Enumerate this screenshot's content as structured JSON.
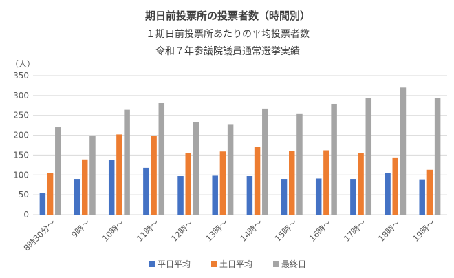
{
  "chart_data": {
    "type": "bar",
    "title": "期日前投票所の投票者数（時間別）",
    "subtitle": "１期日前投票所あたりの平均投票者数",
    "subtitle2": "令和７年参議院議員通常選挙実績",
    "ylabel": "（人）",
    "xlabel": "",
    "ylim": [
      0,
      350
    ],
    "yticks": [
      0,
      50,
      100,
      150,
      200,
      250,
      300,
      350
    ],
    "grid": true,
    "legend_position": "bottom",
    "categories": [
      "8時30分～",
      "9時～",
      "10時～",
      "11時～",
      "12時～",
      "13時～",
      "14時～",
      "15時～",
      "16時～",
      "17時～",
      "18時～",
      "19時～"
    ],
    "series": [
      {
        "name": "平日平均",
        "color": "#4472C4",
        "values": [
          55,
          90,
          137,
          118,
          97,
          98,
          97,
          90,
          91,
          90,
          104,
          89
        ]
      },
      {
        "name": "土日平均",
        "color": "#ED7D31",
        "values": [
          104,
          139,
          202,
          199,
          155,
          159,
          171,
          160,
          162,
          155,
          144,
          113
        ]
      },
      {
        "name": "最終日",
        "color": "#A5A5A5",
        "values": [
          220,
          199,
          264,
          281,
          233,
          228,
          267,
          255,
          279,
          293,
          320,
          294
        ]
      }
    ]
  }
}
